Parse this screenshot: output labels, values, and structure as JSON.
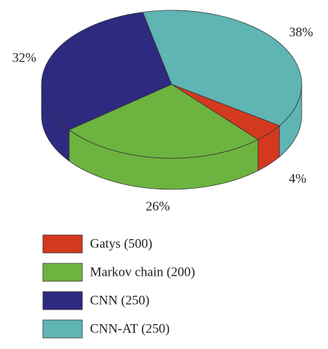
{
  "chart_data": {
    "type": "pie",
    "categories": [
      "Gatys (500)",
      "Markov chain (200)",
      "CNN (250)",
      "CNN-AT (250)"
    ],
    "values": [
      4,
      26,
      32,
      38
    ],
    "value_labels": [
      "4%",
      "26%",
      "32%",
      "38%"
    ],
    "colors": [
      "#d2391e",
      "#6db33f",
      "#2e2a80",
      "#5fb4b4"
    ]
  }
}
